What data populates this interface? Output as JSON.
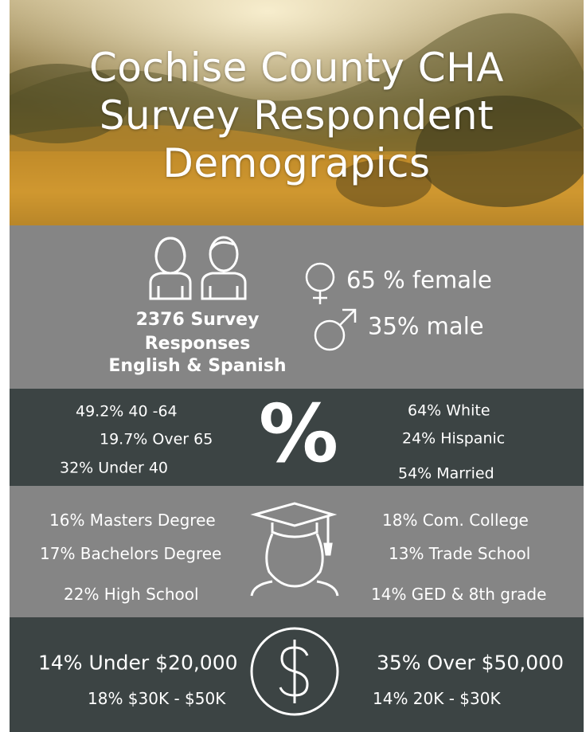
{
  "header": {
    "title": [
      "Cochise County CHA",
      "Survey Respondent",
      "Demograpics"
    ]
  },
  "gender": {
    "responses": [
      "2376 Survey",
      "Responses",
      "English & Spanish"
    ],
    "female": "65 % female",
    "male": "35% male"
  },
  "age": {
    "left": [
      "49.2% 40 -64",
      "19.7% Over 65",
      "32% Under 40"
    ],
    "symbol": "%",
    "right": [
      "64% White",
      "24% Hispanic",
      "54% Married"
    ]
  },
  "education": {
    "left": [
      "16% Masters Degree",
      "17% Bachelors Degree",
      "22% High School"
    ],
    "right": [
      "18% Com. College",
      "13% Trade School",
      "14% GED & 8th grade"
    ]
  },
  "income": {
    "left": [
      "14% Under $20,000",
      "18% $30K - $50K"
    ],
    "right": [
      "35% Over $50,000",
      "14% 20K - $30K"
    ]
  }
}
